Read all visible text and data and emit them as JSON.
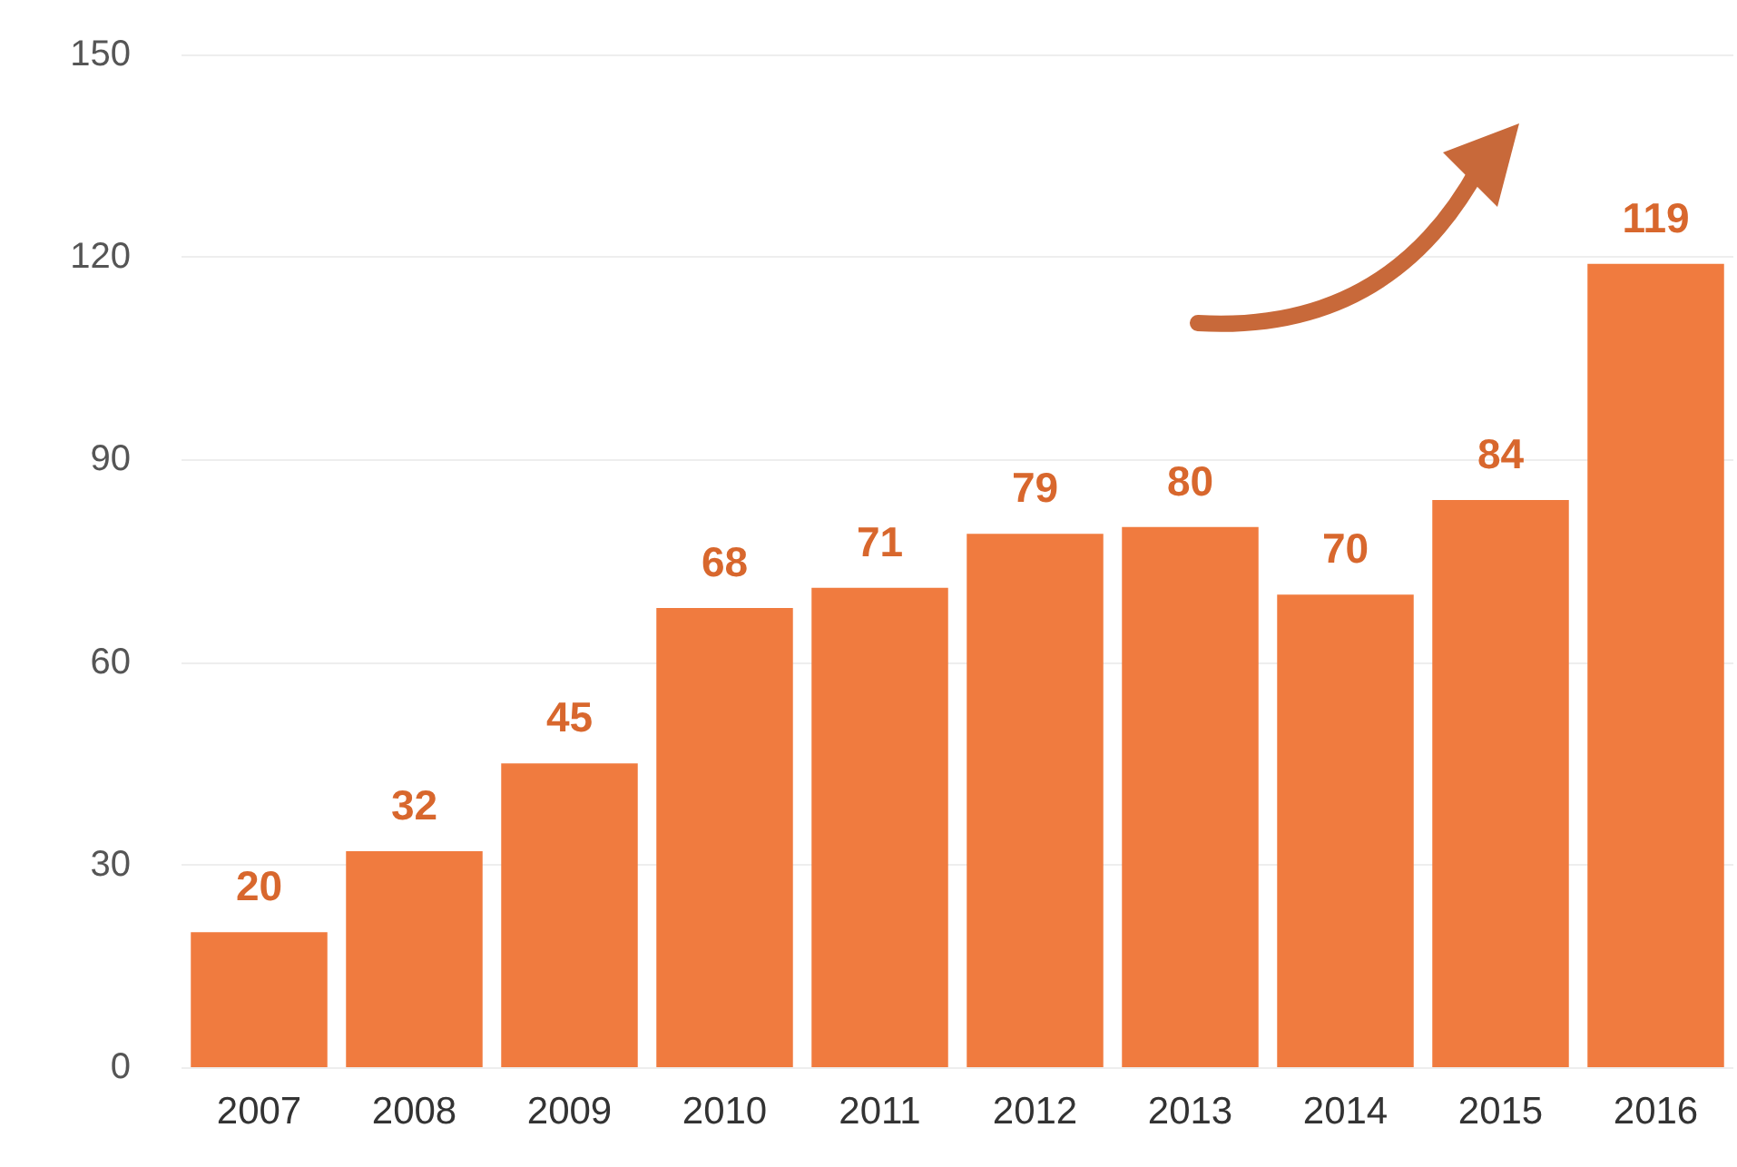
{
  "chart_data": {
    "type": "bar",
    "categories": [
      "2007",
      "2008",
      "2009",
      "2010",
      "2011",
      "2012",
      "2013",
      "2014",
      "2015",
      "2016"
    ],
    "values": [
      20,
      32,
      45,
      68,
      71,
      79,
      80,
      70,
      84,
      119
    ],
    "color": "#f07b3f",
    "ylim": [
      0,
      150
    ],
    "yticks": [
      0,
      30,
      60,
      90,
      120,
      150
    ],
    "grid": "y",
    "data_labels": true
  }
}
